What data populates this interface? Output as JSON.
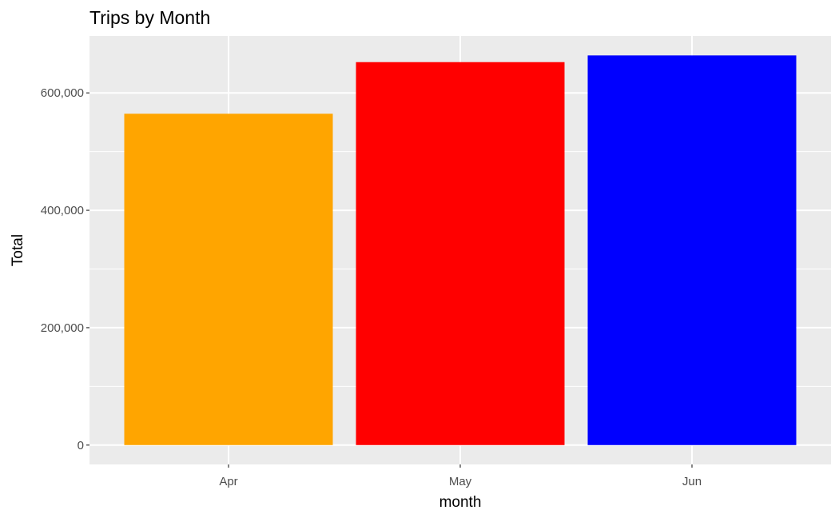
{
  "chart_data": {
    "type": "bar",
    "title": "Trips by Month",
    "xlabel": "month",
    "ylabel": "Total",
    "categories": [
      "Apr",
      "May",
      "Jun"
    ],
    "values": [
      564516,
      652435,
      663844
    ],
    "colors": [
      "#FFA500",
      "#FF0000",
      "#0000FF"
    ],
    "ylim": [
      -33000,
      697000
    ],
    "yticks": [
      0,
      200000,
      400000,
      600000
    ],
    "ytick_labels": [
      "0",
      "200,000",
      "400,000",
      "600,000"
    ],
    "grid": true,
    "panel_background": "#EBEBEB",
    "grid_color": "#FFFFFF",
    "legend": "none"
  }
}
